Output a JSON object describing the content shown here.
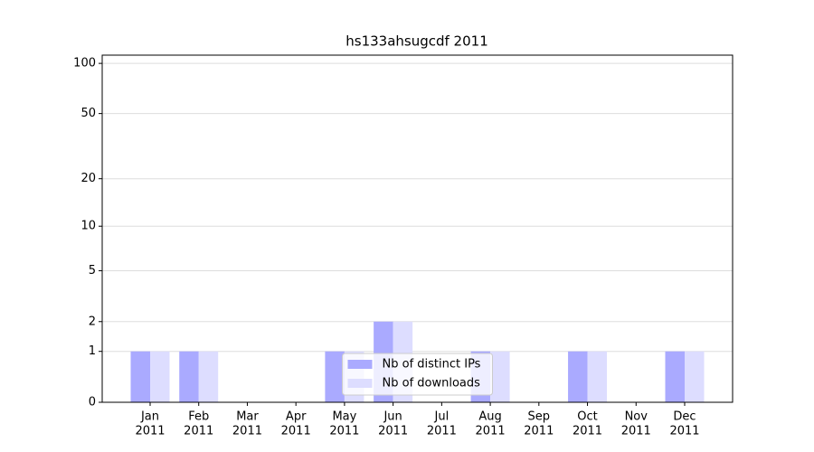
{
  "chart_data": {
    "type": "bar",
    "title": "hs133ahsugcdf 2011",
    "categories": [
      [
        "Jan",
        "2011"
      ],
      [
        "Feb",
        "2011"
      ],
      [
        "Mar",
        "2011"
      ],
      [
        "Apr",
        "2011"
      ],
      [
        "May",
        "2011"
      ],
      [
        "Jun",
        "2011"
      ],
      [
        "Jul",
        "2011"
      ],
      [
        "Aug",
        "2011"
      ],
      [
        "Sep",
        "2011"
      ],
      [
        "Oct",
        "2011"
      ],
      [
        "Nov",
        "2011"
      ],
      [
        "Dec",
        "2011"
      ]
    ],
    "series": [
      {
        "name": "Nb of distinct IPs",
        "color": "#aaaaff",
        "values": [
          1,
          1,
          0,
          0,
          1,
          2,
          0,
          1,
          0,
          1,
          0,
          1
        ]
      },
      {
        "name": "Nb of downloads",
        "color": "#ddddff",
        "values": [
          1,
          1,
          0,
          0,
          1,
          2,
          0,
          1,
          0,
          1,
          0,
          1
        ]
      }
    ],
    "yscale": "log1p",
    "ylim": [
      0,
      112
    ],
    "yticks": [
      0,
      1,
      2,
      5,
      10,
      20,
      50,
      100
    ],
    "grid": true,
    "legend": "lower center"
  }
}
